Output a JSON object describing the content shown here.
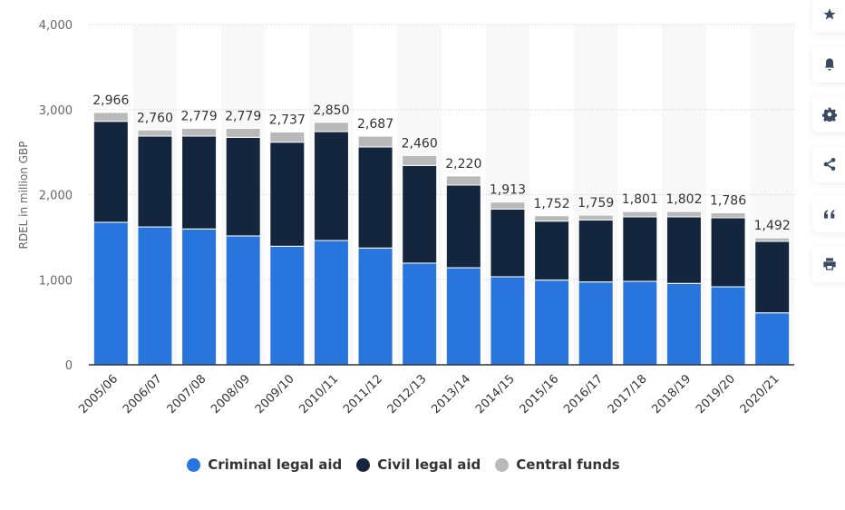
{
  "chart_data": {
    "type": "bar",
    "stacked": true,
    "title": "",
    "xlabel": "",
    "ylabel": "RDEL in million GBP",
    "ylim": [
      0,
      4000
    ],
    "yticks": [
      0,
      1000,
      2000,
      3000,
      4000
    ],
    "ytick_labels": [
      "0",
      "1,000",
      "2,000",
      "3,000",
      "4,000"
    ],
    "grid": true,
    "legend_position": "bottom",
    "categories": [
      "2005/06",
      "2006/07",
      "2007/08",
      "2008/09",
      "2009/10",
      "2010/11",
      "2011/12",
      "2012/13",
      "2013/14",
      "2014/15",
      "2015/16",
      "2016/17",
      "2017/18",
      "2018/19",
      "2019/20",
      "2020/21"
    ],
    "series": [
      {
        "name": "Criminal legal aid",
        "color": "#2876dd",
        "values": [
          1675,
          1621,
          1597,
          1515,
          1394,
          1461,
          1373,
          1195,
          1141,
          1035,
          996,
          974,
          981,
          957,
          917,
          611
        ]
      },
      {
        "name": "Civil legal aid",
        "color": "#13263d",
        "values": [
          1187,
          1067,
          1091,
          1159,
          1223,
          1280,
          1187,
          1148,
          971,
          796,
          693,
          729,
          758,
          782,
          811,
          840
        ]
      },
      {
        "name": "Central funds",
        "color": "#b9b9b9",
        "values": [
          104,
          72,
          91,
          105,
          120,
          109,
          127,
          117,
          108,
          82,
          63,
          56,
          62,
          63,
          58,
          41
        ]
      }
    ],
    "totals": [
      2966,
      2760,
      2779,
      2779,
      2737,
      2850,
      2687,
      2460,
      2220,
      1913,
      1752,
      1759,
      1801,
      1802,
      1786,
      1492
    ],
    "total_labels": [
      "2,966",
      "2,760",
      "2,779",
      "2,779",
      "2,737",
      "2,850",
      "2,687",
      "2,460",
      "2,220",
      "1,913",
      "1,752",
      "1,759",
      "1,801",
      "1,802",
      "1,786",
      "1,492"
    ]
  },
  "legend": [
    {
      "label": "Criminal legal aid",
      "color": "#2876dd"
    },
    {
      "label": "Civil legal aid",
      "color": "#13263d"
    },
    {
      "label": "Central funds",
      "color": "#b9b9b9"
    }
  ],
  "sidebar": {
    "icon_color": "#3b4a63",
    "buttons": [
      {
        "icon": "star-icon",
        "action": "favorite"
      },
      {
        "icon": "bell-icon",
        "action": "notification"
      },
      {
        "icon": "gear-icon",
        "action": "settings"
      },
      {
        "icon": "share-icon",
        "action": "share"
      },
      {
        "icon": "quote-icon",
        "action": "cite"
      },
      {
        "icon": "print-icon",
        "action": "print"
      }
    ]
  }
}
